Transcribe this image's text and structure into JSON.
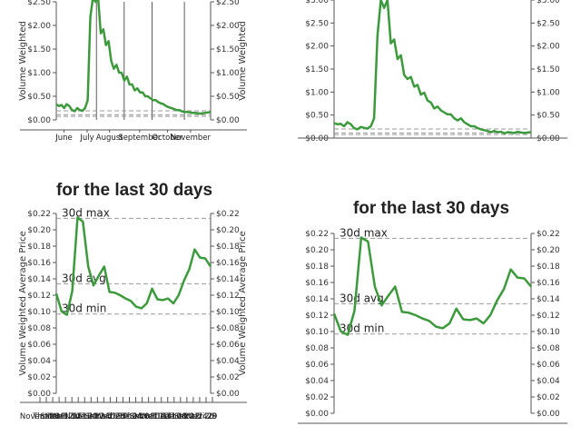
{
  "colors": {
    "line": "#3c9a3c",
    "axis": "#555555",
    "grid": "#999999",
    "ref": "#999999"
  },
  "headings": {
    "left": "for the last 30 days",
    "right": "for the last 30 days"
  },
  "axis_title_left": "Volume Weighted Average Price",
  "ref_labels": {
    "max": "30d max",
    "avg": "30d avg",
    "min": "30d min"
  },
  "chart_data": [
    {
      "id": "top-left",
      "type": "line",
      "y_ticks": [
        "$0.00",
        "$0.50",
        "$1.00",
        "$1.50",
        "$2.00",
        "$2.50"
      ],
      "ylim": [
        0,
        3.0
      ],
      "ylabel": "Volume Weighted",
      "x_ticks": [
        "June",
        "July",
        "August",
        "September",
        "October",
        "November"
      ],
      "x_tick_pos": [
        0.05,
        0.2,
        0.345,
        0.54,
        0.72,
        0.87
      ],
      "v_lines": [
        0.26,
        0.44,
        0.62,
        0.83
      ],
      "ref_lines": [
        0.23,
        0.13,
        0.09
      ],
      "values": [
        0.4,
        0.35,
        0.38,
        0.3,
        0.4,
        0.35,
        0.25,
        0.22,
        0.3,
        0.25,
        0.23,
        0.3,
        0.5,
        2.6,
        3.1,
        3.0,
        3.1,
        2.2,
        2.3,
        1.9,
        2.0,
        1.5,
        1.3,
        1.4,
        1.2,
        1.2,
        1.0,
        1.1,
        0.9,
        0.9,
        0.75,
        0.8,
        0.7,
        0.7,
        0.6,
        0.6,
        0.55,
        0.5,
        0.5,
        0.45,
        0.42,
        0.4,
        0.35,
        0.32,
        0.3,
        0.28,
        0.25,
        0.25,
        0.22,
        0.2,
        0.2,
        0.19,
        0.18,
        0.18,
        0.17,
        0.16,
        0.17,
        0.18,
        0.19,
        0.2
      ]
    },
    {
      "id": "top-right",
      "type": "line",
      "y_ticks": [
        "$0.00",
        "$0.50",
        "$1.00",
        "$1.50",
        "$2.00",
        "$2.50",
        "$3.00"
      ],
      "ylim": [
        0,
        3.5
      ],
      "ref_lines": [
        0.23,
        0.13,
        0.09
      ],
      "values": [
        0.38,
        0.35,
        0.36,
        0.3,
        0.4,
        0.35,
        0.25,
        0.22,
        0.28,
        0.26,
        0.24,
        0.3,
        0.5,
        2.6,
        3.5,
        3.3,
        3.5,
        2.4,
        2.5,
        2.0,
        2.1,
        1.6,
        1.5,
        1.55,
        1.3,
        1.35,
        1.1,
        1.15,
        0.95,
        0.9,
        0.75,
        0.8,
        0.7,
        0.65,
        0.6,
        0.6,
        0.5,
        0.45,
        0.5,
        0.4,
        0.35,
        0.3,
        0.3,
        0.25,
        0.22,
        0.2,
        0.18,
        0.15,
        0.18,
        0.15,
        0.16,
        0.12,
        0.15,
        0.14,
        0.13,
        0.16,
        0.14,
        0.13,
        0.14,
        0.15
      ]
    },
    {
      "id": "bottom-left",
      "type": "line",
      "y_ticks": [
        "$0.00",
        "$0.02",
        "$0.04",
        "$0.06",
        "$0.08",
        "$0.10",
        "$0.12",
        "$0.14",
        "$0.16",
        "$0.18",
        "$0.20",
        "$0.22"
      ],
      "ylim": [
        0,
        0.22
      ],
      "ylabel": "Volume Weighted Average Price",
      "x_ticks": [
        "November",
        "Thu 08",
        "Sat 10",
        "Mon 12",
        "Wed 14",
        "Fri 16",
        "Nov 18",
        "Tue 20",
        "Thu 22",
        "Sat 24",
        "Mon 26",
        "Wed 28",
        "Fri 30",
        "Dec 02",
        "Tue 04",
        "Thu 06",
        "Sat 08",
        "Mon 10",
        "Wed 12",
        "Fri 14",
        "Dec 16",
        "Tue 18",
        "Thu 20",
        "Sat 22",
        "Mon 24",
        "Wed 26",
        "Fri 28",
        "29"
      ],
      "ref_lines": [
        0.214,
        0.134,
        0.097
      ],
      "values": [
        0.122,
        0.1,
        0.096,
        0.125,
        0.215,
        0.21,
        0.155,
        0.132,
        0.144,
        0.155,
        0.124,
        0.123,
        0.12,
        0.116,
        0.113,
        0.106,
        0.104,
        0.11,
        0.128,
        0.115,
        0.114,
        0.116,
        0.11,
        0.12,
        0.138,
        0.152,
        0.176,
        0.166,
        0.165,
        0.155
      ]
    },
    {
      "id": "bottom-right",
      "type": "line",
      "y_ticks": [
        "$0.00",
        "$0.02",
        "$0.04",
        "$0.06",
        "$0.08",
        "$0.10",
        "$0.12",
        "$0.14",
        "$0.16",
        "$0.18",
        "$0.20",
        "$0.22"
      ],
      "ylim": [
        0,
        0.22
      ],
      "ref_lines": [
        0.214,
        0.134,
        0.097
      ],
      "values": [
        0.122,
        0.1,
        0.096,
        0.125,
        0.215,
        0.21,
        0.155,
        0.132,
        0.144,
        0.155,
        0.124,
        0.123,
        0.12,
        0.116,
        0.113,
        0.106,
        0.104,
        0.11,
        0.128,
        0.115,
        0.114,
        0.116,
        0.11,
        0.12,
        0.138,
        0.152,
        0.176,
        0.166,
        0.165,
        0.155
      ]
    }
  ]
}
